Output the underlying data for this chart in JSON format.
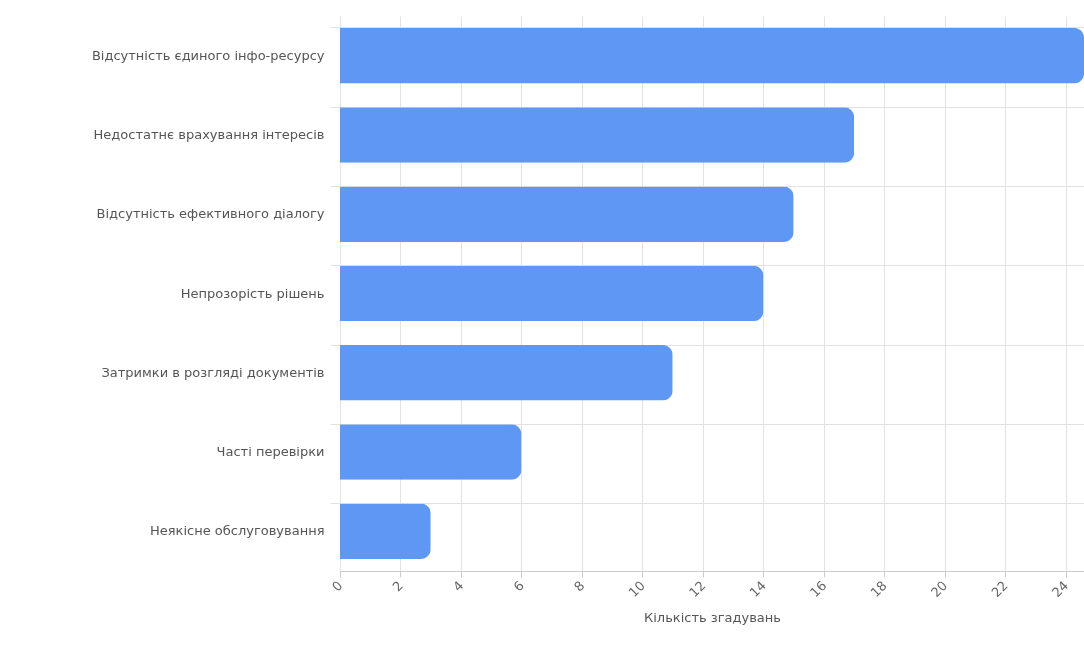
{
  "chart_data": {
    "type": "bar",
    "orientation": "horizontal",
    "categories": [
      "Відсутність єдиного інфо-ресурсу",
      "Недостатнє врахування інтересів",
      "Відсутність ефективного діалогу",
      "Непрозорість рішень",
      "Затримки в розгляді документів",
      "Часті перевірки",
      "Неякісне обслуговування"
    ],
    "values": [
      24.6,
      17,
      15,
      14,
      11,
      6,
      3
    ],
    "color": "#5f98f4",
    "xlabel": "Кількість згадувань",
    "xlim": [
      0,
      24.6
    ],
    "xticks": [
      0,
      2,
      4,
      6,
      8,
      10,
      12,
      14,
      16,
      18,
      20,
      22,
      24
    ],
    "grid": true
  }
}
